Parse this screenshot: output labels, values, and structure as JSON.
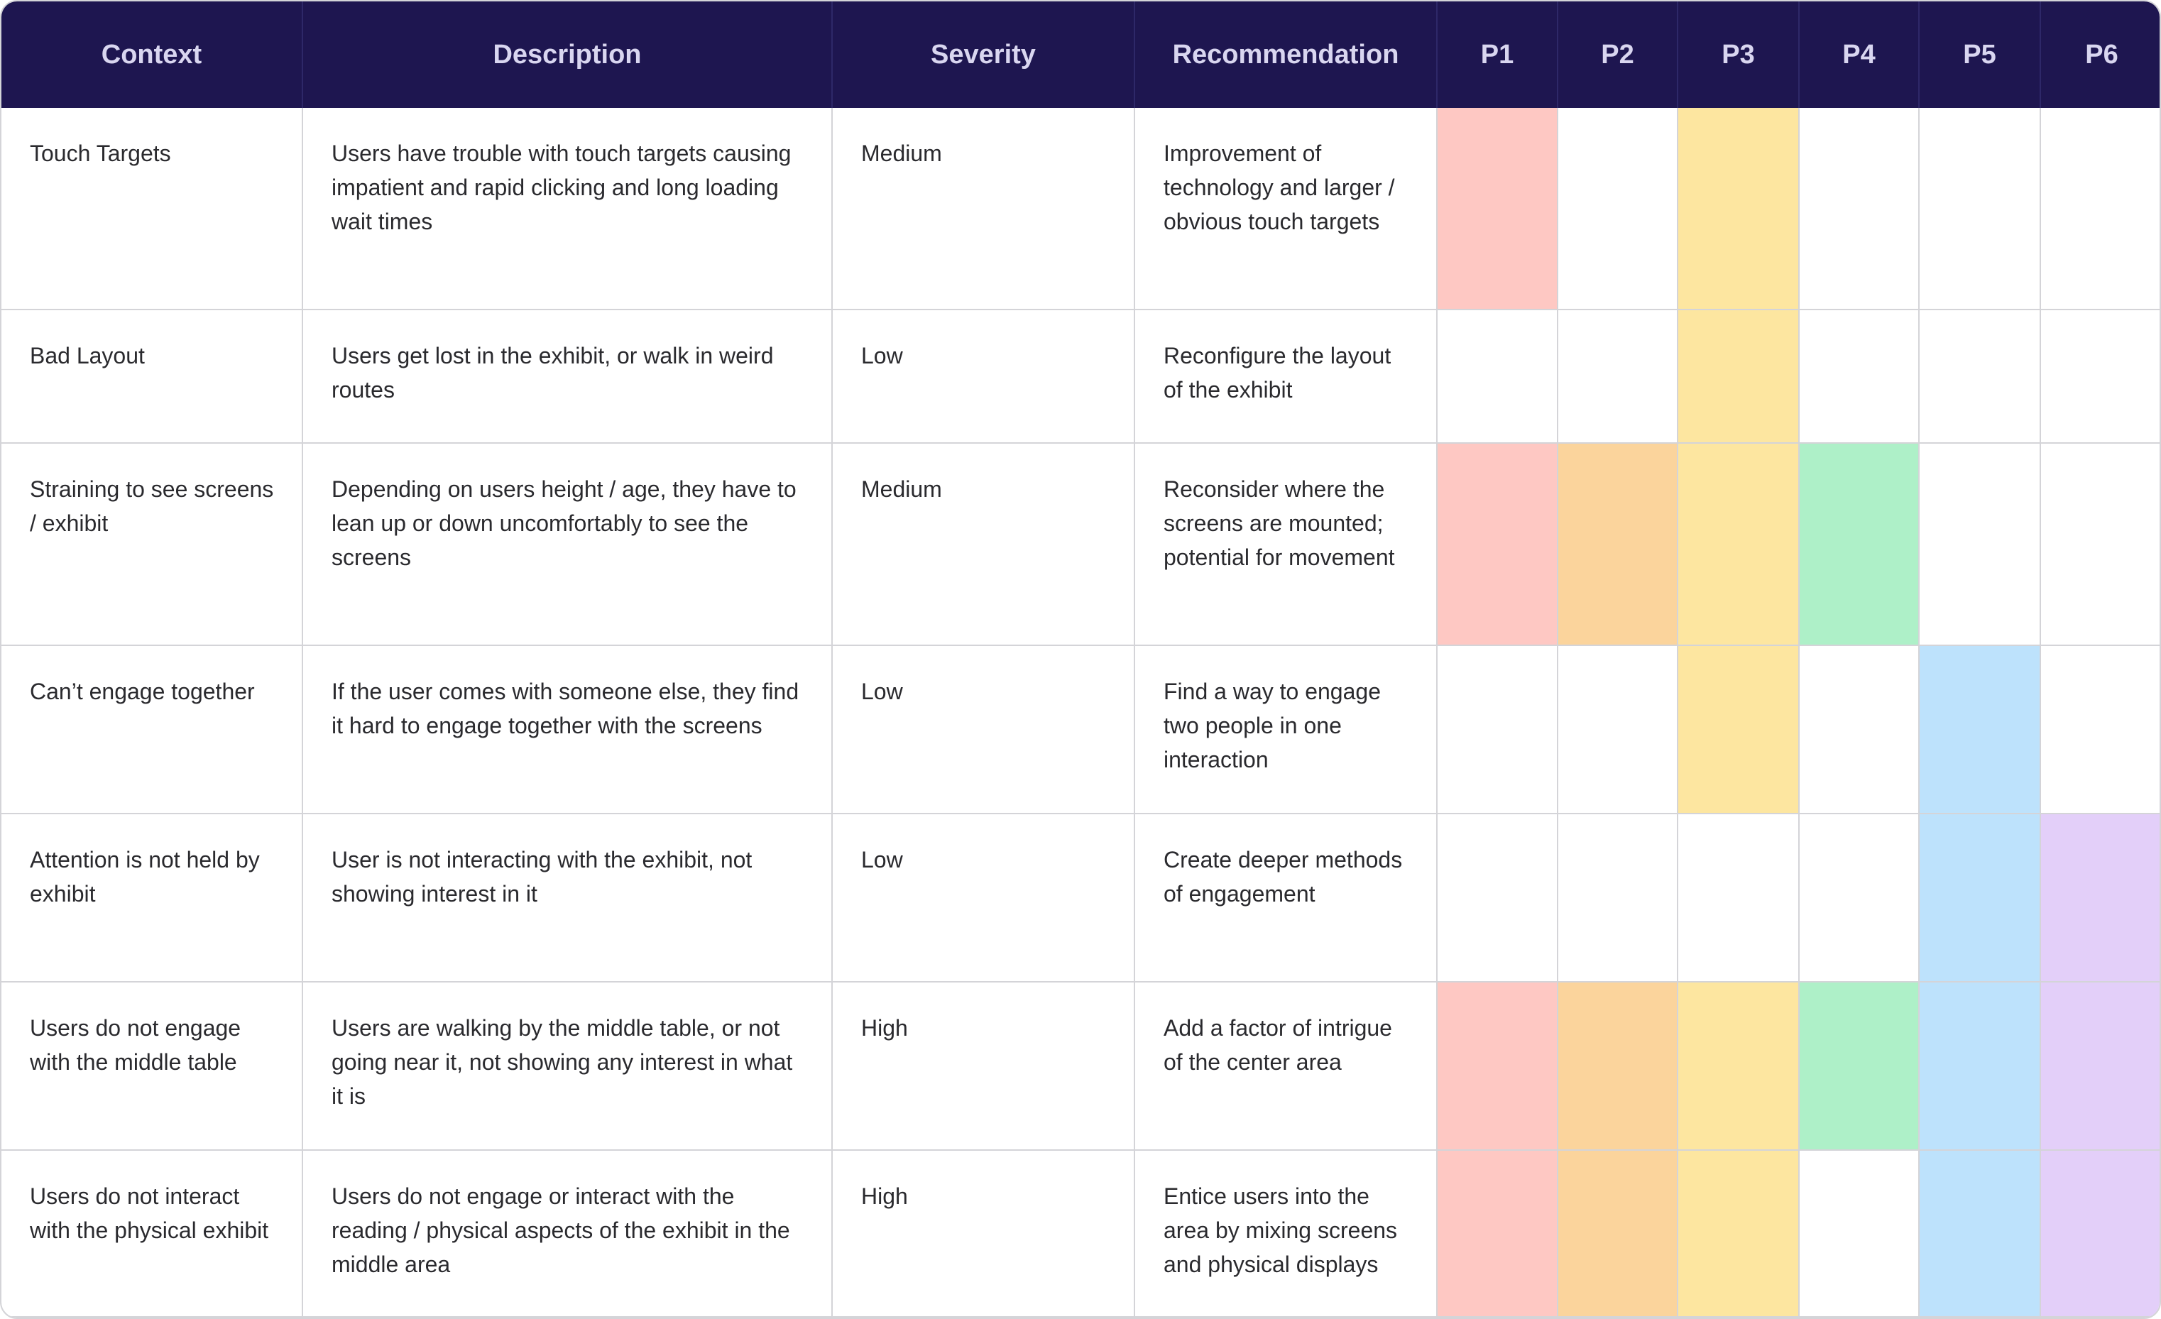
{
  "header": [
    "Context",
    "Description",
    "Severity",
    "Recommendation",
    "P1",
    "P2",
    "P3",
    "P4",
    "P5",
    "P6"
  ],
  "participant_colors": [
    "#fec8c3",
    "#fbd49c",
    "#fde6a0",
    "#aef0c8",
    "#bde2fc",
    "#e3cff9"
  ],
  "rows": [
    {
      "context": "Touch Targets",
      "description": "Users have trouble with touch targets causing impatient and rapid clicking and long loading wait times",
      "severity": "Medium",
      "recommendation": "Improvement of technology and larger / obvious touch targets",
      "participants": [
        true,
        false,
        true,
        false,
        false,
        false
      ]
    },
    {
      "context": "Bad Layout",
      "description": "Users get lost in the exhibit, or walk in weird routes",
      "severity": "Low",
      "recommendation": "Reconfigure the layout of the exhibit",
      "participants": [
        false,
        false,
        true,
        false,
        false,
        false
      ]
    },
    {
      "context": "Straining to see screens / exhibit",
      "description": "Depending on users height / age, they have to lean up or down uncomfortably to see the screens",
      "severity": "Medium",
      "recommendation": "Reconsider where the screens are mounted; potential for movement",
      "participants": [
        true,
        true,
        true,
        true,
        false,
        false
      ]
    },
    {
      "context": "Can’t engage together",
      "description": "If the user comes with someone else, they find it hard to engage together with the screens",
      "severity": "Low",
      "recommendation": "Find a way to engage two people in one interaction",
      "participants": [
        false,
        false,
        true,
        false,
        true,
        false
      ]
    },
    {
      "context": "Attention is not held by exhibit",
      "description": "User is not interacting with the exhibit, not showing interest in it",
      "severity": "Low",
      "recommendation": "Create deeper methods of engagement",
      "participants": [
        false,
        false,
        false,
        false,
        true,
        true
      ]
    },
    {
      "context": "Users do not engage with the middle table",
      "description": "Users are walking by the middle table, or not going near it, not showing any interest in what it is",
      "severity": "High",
      "recommendation": "Add a factor of intrigue of the center area",
      "participants": [
        true,
        true,
        true,
        true,
        true,
        true
      ]
    },
    {
      "context": "Users do not interact with the physical exhibit",
      "description": "Users do not engage or interact with the reading / physical aspects of the exhibit in the middle area",
      "severity": "High",
      "recommendation": "Entice users into the area by mixing screens and physical displays",
      "participants": [
        true,
        true,
        true,
        false,
        true,
        true
      ]
    }
  ]
}
